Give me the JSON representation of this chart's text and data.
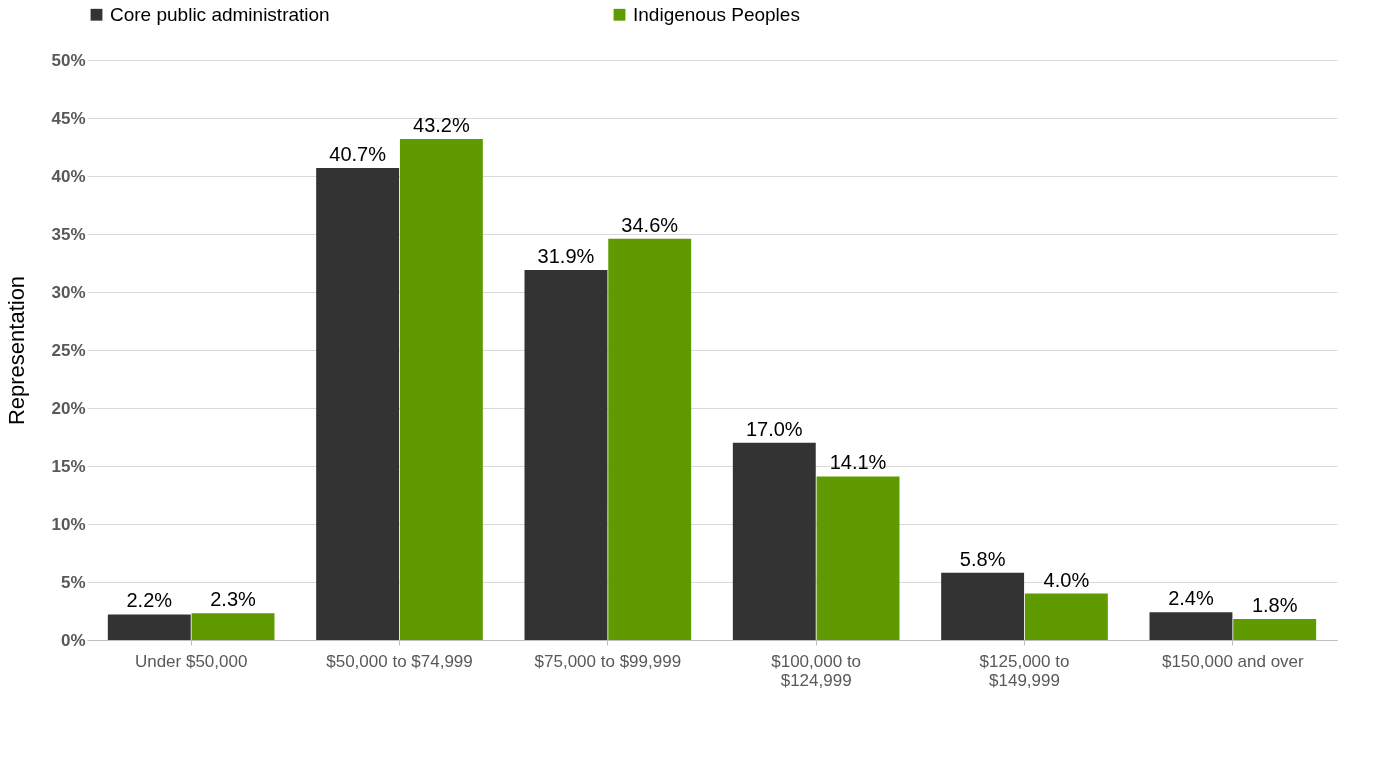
{
  "chart_data": {
    "type": "bar",
    "ylabel": "Representation",
    "categories": [
      "Under $50,000",
      "$50,000 to $74,999",
      "$75,000 to $99,999",
      "$100,000 to $124,999",
      "$125,000 to $149,999",
      "$150,000 and over"
    ],
    "series": [
      {
        "name": "Core public administration",
        "color": "#333333",
        "values": [
          2.2,
          40.7,
          31.9,
          17.0,
          5.8,
          2.4
        ],
        "value_labels": [
          "2.2%",
          "40.7%",
          "31.9%",
          "17.0%",
          "5.8%",
          "2.4%"
        ]
      },
      {
        "name": "Indigenous Peoples",
        "color": "#5f9b00",
        "values": [
          2.3,
          43.2,
          34.6,
          14.1,
          4.0,
          1.8
        ],
        "value_labels": [
          "2.3%",
          "43.2%",
          "34.6%",
          "14.1%",
          "4.0%",
          "1.8%"
        ]
      }
    ],
    "ylim": [
      0,
      50
    ],
    "yticks": [
      {
        "value": 0,
        "label": "0%"
      },
      {
        "value": 5,
        "label": "5%"
      },
      {
        "value": 10,
        "label": "10%"
      },
      {
        "value": 15,
        "label": "15%"
      },
      {
        "value": 20,
        "label": "20%"
      },
      {
        "value": 25,
        "label": "25%"
      },
      {
        "value": 30,
        "label": "30%"
      },
      {
        "value": 35,
        "label": "35%"
      },
      {
        "value": 40,
        "label": "40%"
      },
      {
        "value": 45,
        "label": "45%"
      },
      {
        "value": 50,
        "label": "50%"
      }
    ],
    "grid": "y",
    "legend": "top"
  }
}
